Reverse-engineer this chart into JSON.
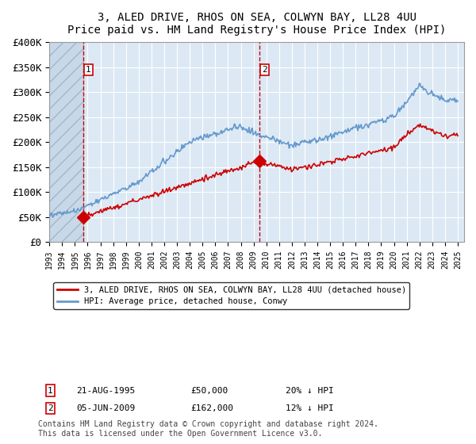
{
  "title": "3, ALED DRIVE, RHOS ON SEA, COLWYN BAY, LL28 4UU",
  "subtitle": "Price paid vs. HM Land Registry's House Price Index (HPI)",
  "ylim": [
    0,
    400000
  ],
  "yticks": [
    0,
    50000,
    100000,
    150000,
    200000,
    250000,
    300000,
    350000,
    400000
  ],
  "ytick_labels": [
    "£0",
    "£50K",
    "£100K",
    "£150K",
    "£200K",
    "£250K",
    "£300K",
    "£350K",
    "£400K"
  ],
  "background_color": "#dce9f5",
  "grid_color": "#ffffff",
  "t1": 1995.64,
  "p1": 50000,
  "t2": 2009.43,
  "p2": 162000,
  "red_line_color": "#cc0000",
  "blue_line_color": "#6699cc",
  "legend_label_red": "3, ALED DRIVE, RHOS ON SEA, COLWYN BAY, LL28 4UU (detached house)",
  "legend_label_blue": "HPI: Average price, detached house, Conwy",
  "footnote": "Contains HM Land Registry data © Crown copyright and database right 2024.\nThis data is licensed under the Open Government Licence v3.0.",
  "annotation1_date": "21-AUG-1995",
  "annotation1_price": "£50,000",
  "annotation1_hpi": "20% ↓ HPI",
  "annotation2_date": "05-JUN-2009",
  "annotation2_price": "£162,000",
  "annotation2_hpi": "12% ↓ HPI"
}
